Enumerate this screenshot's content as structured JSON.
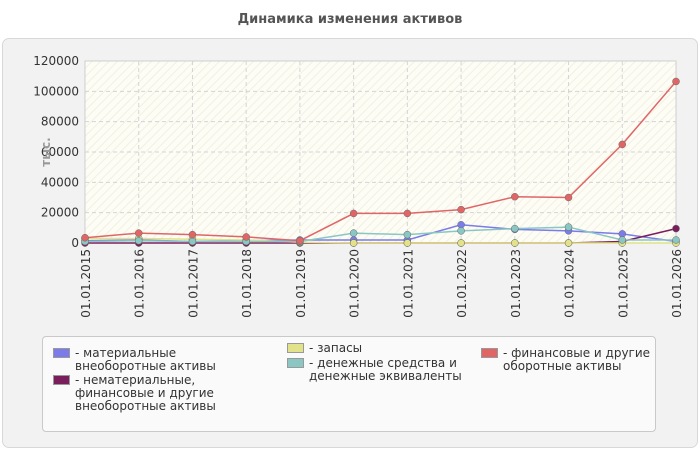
{
  "chart_data": {
    "type": "line",
    "title": "Динамика изменения активов",
    "ylabel": "тыс.",
    "xlabel": "",
    "ylim": [
      0,
      120000
    ],
    "yticks": [
      0,
      20000,
      40000,
      60000,
      80000,
      100000,
      120000
    ],
    "categories": [
      "01.01.2015",
      "01.01.2016",
      "01.01.2017",
      "01.01.2018",
      "01.01.2019",
      "01.01.2020",
      "01.01.2021",
      "01.01.2022",
      "01.01.2023",
      "01.01.2024",
      "01.01.2025",
      "01.01.2026"
    ],
    "grid": true,
    "legend_position": "bottom",
    "series": [
      {
        "name": "- материальные внеоборотные активы",
        "color": "#7b7bea",
        "values": [
          1500,
          2000,
          1000,
          1500,
          2000,
          2000,
          2000,
          12000,
          9000,
          8000,
          6000,
          1000
        ]
      },
      {
        "name": "- нематериальные, финансовые и другие внеоборотные активы",
        "color": "#7a1f5c",
        "values": [
          0,
          0,
          0,
          0,
          0,
          0,
          0,
          0,
          0,
          0,
          1000,
          9500
        ]
      },
      {
        "name": "- запасы",
        "color": "#e2e28a",
        "values": [
          3000,
          3000,
          2500,
          2000,
          500,
          0,
          0,
          0,
          0,
          0,
          0,
          0
        ]
      },
      {
        "name": "- денежные средства и денежные эквиваленты",
        "color": "#8ac7c2",
        "values": [
          1000,
          1500,
          1000,
          1000,
          1000,
          6500,
          5500,
          8000,
          9500,
          10500,
          2000,
          2000
        ]
      },
      {
        "name": "- финансовые и другие оборотные активы",
        "color": "#e06666",
        "values": [
          3500,
          6500,
          5500,
          4000,
          1500,
          19500,
          19500,
          22000,
          30500,
          30000,
          65000,
          106500
        ]
      }
    ]
  }
}
